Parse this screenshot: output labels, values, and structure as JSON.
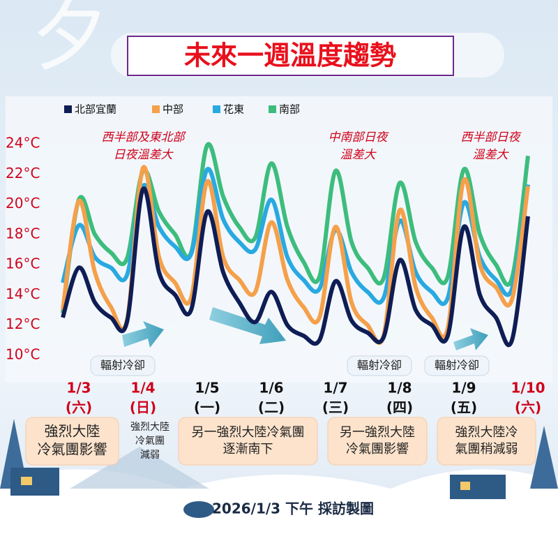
{
  "chart_data": {
    "type": "line",
    "title": "未來一週溫度趨勢",
    "decoration": "夕",
    "categories": [
      null,
      "1/3",
      null,
      null,
      null,
      "1/4",
      null,
      null,
      null,
      "1/5",
      null,
      null,
      null,
      "1/6",
      null,
      null,
      null,
      "1/7",
      null,
      null,
      null,
      "1/8",
      null,
      null,
      null,
      "1/9",
      null,
      null,
      null,
      "1/10"
    ],
    "weekdays": [
      null,
      "(六)",
      null,
      null,
      null,
      "(日)",
      null,
      null,
      null,
      "(一)",
      null,
      null,
      null,
      "(二)",
      null,
      null,
      null,
      "(三)",
      null,
      null,
      null,
      "(四)",
      null,
      null,
      null,
      "(五)",
      null,
      null,
      null,
      "(六)"
    ],
    "category_colors": [
      null,
      "#d0021b",
      null,
      null,
      null,
      "#d0021b",
      null,
      null,
      null,
      "#111111",
      null,
      null,
      null,
      "#111111",
      null,
      null,
      null,
      "#111111",
      null,
      null,
      null,
      "#111111",
      null,
      null,
      null,
      "#111111",
      null,
      null,
      null,
      "#d0021b"
    ],
    "series": [
      {
        "name": "北部宜蘭",
        "color": "#0f1d55",
        "values": [
          12.5,
          15.8,
          13.5,
          12.5,
          12.2,
          21.0,
          15.5,
          14.0,
          13.0,
          19.5,
          15.5,
          13.5,
          12.2,
          14.2,
          12.0,
          11.3,
          11.0,
          14.9,
          12.3,
          11.5,
          11.2,
          16.3,
          13.0,
          12.0,
          11.3,
          18.5,
          14.0,
          12.5,
          11.0,
          19.2
        ]
      },
      {
        "name": "中部",
        "color": "#f5a04a",
        "values": [
          13.0,
          20.2,
          15.5,
          13.2,
          12.3,
          22.4,
          16.5,
          14.8,
          13.8,
          21.5,
          16.5,
          15.0,
          14.2,
          18.8,
          15.0,
          13.2,
          12.5,
          18.5,
          13.5,
          12.0,
          11.3,
          19.6,
          14.5,
          12.5,
          11.8,
          21.6,
          16.0,
          14.5,
          13.7,
          21.2
        ]
      },
      {
        "name": "花東",
        "color": "#29a9e1",
        "values": [
          14.8,
          18.6,
          16.5,
          15.8,
          15.3,
          21.2,
          18.5,
          17.2,
          16.7,
          22.3,
          19.0,
          17.5,
          17.0,
          20.3,
          16.5,
          15.0,
          14.4,
          18.3,
          15.5,
          14.2,
          13.8,
          18.9,
          15.5,
          14.2,
          13.8,
          20.1,
          16.5,
          15.0,
          14.4,
          21.3
        ]
      },
      {
        "name": "南部",
        "color": "#3dbd7d",
        "values": [
          12.8,
          20.3,
          18.0,
          16.8,
          16.4,
          22.2,
          19.5,
          18.0,
          16.8,
          23.9,
          20.5,
          18.5,
          17.8,
          22.7,
          18.5,
          16.2,
          15.2,
          22.2,
          17.5,
          15.8,
          15.1,
          21.4,
          17.5,
          15.8,
          15.2,
          22.3,
          18.0,
          16.0,
          15.1,
          23.2
        ]
      }
    ],
    "ylim": [
      10,
      24
    ],
    "yticks": [
      {
        "value": 10,
        "label": "10°C"
      },
      {
        "value": 12,
        "label": "12°C"
      },
      {
        "value": 14,
        "label": "14°C"
      },
      {
        "value": 16,
        "label": "16°C"
      },
      {
        "value": 18,
        "label": "18°C"
      },
      {
        "value": 20,
        "label": "20°C"
      },
      {
        "value": 22,
        "label": "22°C"
      },
      {
        "value": 24,
        "label": "24°C"
      }
    ],
    "annotations": [
      [
        "西半部及東北部",
        "日夜溫差大"
      ],
      [
        "中南部日夜",
        "溫差大"
      ],
      [
        "西半部日夜",
        "溫差大"
      ]
    ],
    "tags": [
      "輻射冷卻",
      "輻射冷卻",
      "輻射冷卻"
    ],
    "notes": [
      [
        "強烈大陸",
        "冷氣團影響"
      ],
      [
        "強烈大陸",
        "冷氣團",
        "減弱"
      ],
      [
        "另一強烈大陸冷氣團",
        "逐漸南下"
      ],
      [
        "另一強烈大陸",
        "冷氣團影響"
      ],
      [
        "強烈大陸冷",
        "氣團稍減弱"
      ]
    ],
    "footer": "2026/1/3 下午 採訪製圖"
  }
}
